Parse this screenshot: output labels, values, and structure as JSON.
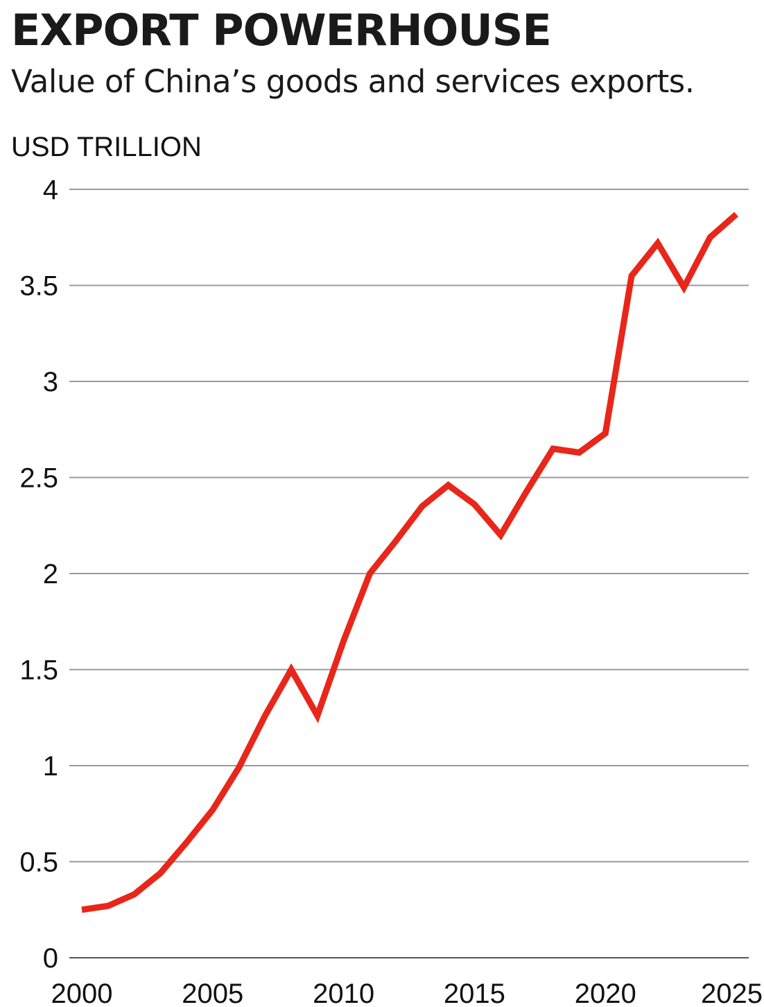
{
  "title": "EXPORT POWERHOUSE",
  "subtitle": "Value of China’s goods and services exports.",
  "chart_data": {
    "type": "line",
    "title": "EXPORT POWERHOUSE",
    "subtitle": "Value of China’s goods and services exports.",
    "ylabel": "USD TRILLION",
    "xlabel": "",
    "xlim": [
      2000,
      2025
    ],
    "ylim": [
      0,
      4
    ],
    "grid": true,
    "x_ticks": [
      2000,
      2005,
      2010,
      2015,
      2020,
      2025
    ],
    "x_tick_labels": [
      "2000",
      "2005",
      "2010",
      "2015",
      "2020",
      "2025"
    ],
    "y_ticks": [
      0,
      0.5,
      1,
      1.5,
      2,
      2.5,
      3,
      3.5,
      4
    ],
    "y_tick_labels": [
      "0",
      "0.5",
      "1",
      "1.5",
      "2",
      "2.5",
      "3",
      "3.5",
      "4"
    ],
    "line_color": "#e8261a",
    "grid_color": "#9a9a9a",
    "series": [
      {
        "x": [
          2000,
          2001,
          2002,
          2003,
          2004,
          2005,
          2006,
          2007,
          2008,
          2009,
          2010,
          2011,
          2012,
          2013,
          2014,
          2015,
          2016,
          2017,
          2018,
          2019,
          2020,
          2021,
          2022,
          2023,
          2024,
          2025
        ],
        "values": [
          0.25,
          0.27,
          0.33,
          0.44,
          0.6,
          0.77,
          0.99,
          1.26,
          1.5,
          1.26,
          1.65,
          2.0,
          2.17,
          2.35,
          2.46,
          2.36,
          2.2,
          2.43,
          2.65,
          2.63,
          2.73,
          3.55,
          3.72,
          3.49,
          3.75,
          3.87
        ]
      }
    ]
  }
}
